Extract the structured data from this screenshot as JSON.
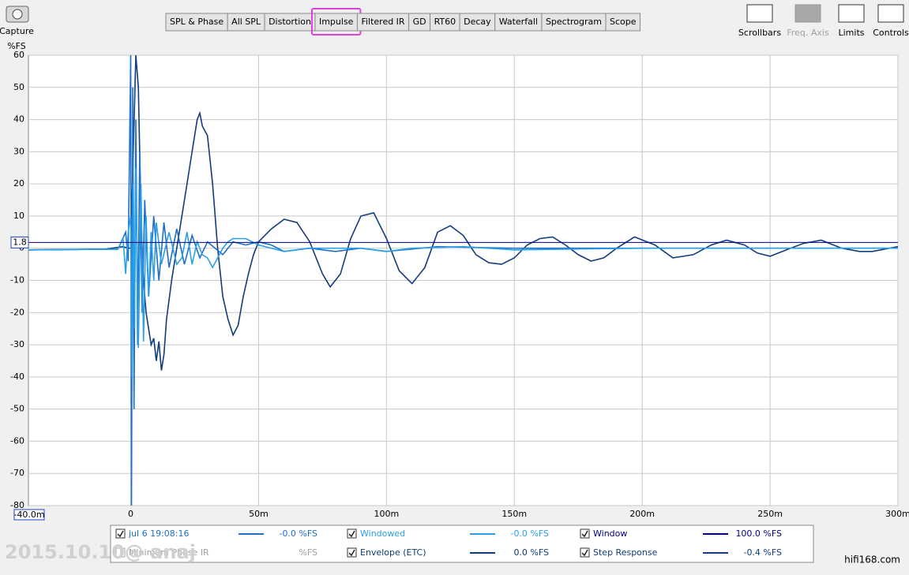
{
  "toolbar": {
    "capture": "Capture",
    "tabs": [
      "SPL & Phase",
      "All SPL",
      "Distortion",
      "Impulse",
      "Filtered IR",
      "GD",
      "RT60",
      "Decay",
      "Waterfall",
      "Spectrogram",
      "Scope"
    ],
    "selected_tab": 3,
    "tools": [
      {
        "label": "Scrollbars",
        "enabled": true
      },
      {
        "label": "Freq. Axis",
        "enabled": false
      },
      {
        "label": "Limits",
        "enabled": true
      },
      {
        "label": "Controls",
        "enabled": true
      }
    ]
  },
  "watermarks": [
    "2015.10.10@ anaj",
    "hifi168.com"
  ],
  "chart_data": {
    "type": "line",
    "ylabel": "%FS",
    "xunit": "s",
    "xlim": [
      -40,
      300
    ],
    "ylim": [
      -80,
      60
    ],
    "xstart": {
      "value": -40,
      "label": "-40.0m"
    },
    "cursor": 1.8,
    "xticks": [
      0,
      {
        "value": 50,
        "label": "50m"
      },
      {
        "value": 100,
        "label": "100m"
      },
      {
        "value": 150,
        "label": "150m"
      },
      {
        "value": 200,
        "label": "200m"
      },
      {
        "value": 250,
        "label": "250m"
      },
      {
        "value": 300,
        "label": "300m"
      }
    ],
    "yticks": [
      -80,
      -70,
      -60,
      -50,
      -40,
      -30,
      -20,
      -10,
      0,
      10,
      20,
      30,
      40,
      50,
      60
    ],
    "grid": true,
    "series": [
      {
        "name": "jul 6 19:08:16",
        "color": "#1f6fc8",
        "checked": true,
        "enabled": true,
        "readout": "-0.0 %FS",
        "x": [
          -40,
          -5,
          -2,
          -1,
          0,
          0.3,
          0.8,
          1.3,
          2,
          2.7,
          3.5,
          4.5,
          5.5,
          7,
          9,
          11,
          13,
          15,
          18,
          21,
          24,
          27,
          30,
          33,
          36,
          40,
          45,
          50,
          55,
          60,
          70,
          80,
          90,
          100,
          120,
          150,
          200,
          300
        ],
        "values": [
          -0.5,
          -0.3,
          5,
          -4,
          60,
          -80,
          50,
          -50,
          40,
          -30,
          30,
          -20,
          15,
          -15,
          10,
          -10,
          8,
          -6,
          6,
          -5,
          4,
          -3,
          2,
          0,
          -2,
          2,
          1,
          2,
          1,
          -1,
          0,
          -1,
          0,
          -1,
          0.5,
          0,
          0,
          0
        ]
      },
      {
        "name": "Windowed",
        "color": "#2aa0e8",
        "checked": true,
        "enabled": true,
        "readout": "-0.0 %FS",
        "x": [
          -40,
          -5,
          -3,
          -2,
          -1,
          0,
          0.5,
          1,
          1.5,
          2,
          3,
          4,
          5,
          6,
          7,
          8,
          9,
          10,
          12,
          15,
          18,
          20,
          22,
          24,
          26,
          28,
          30,
          32,
          34,
          36,
          38,
          40,
          45,
          50,
          55,
          60,
          70,
          80,
          90,
          100,
          110,
          130,
          150,
          200,
          300
        ],
        "values": [
          -0.5,
          -0.3,
          3,
          -8,
          5,
          10,
          -40,
          20,
          -25,
          25,
          -31,
          20,
          -29,
          10,
          -15,
          5,
          -10,
          8,
          -5,
          5,
          -5,
          -3,
          5,
          -5,
          2,
          -2,
          -3,
          -6,
          -3,
          0,
          2,
          3,
          3,
          1,
          0,
          -1,
          0,
          0,
          0,
          -1,
          0,
          0.5,
          -0.5,
          0,
          0
        ]
      },
      {
        "name": "Window",
        "color": "#00007f",
        "checked": true,
        "enabled": true,
        "readout": "100.0 %FS",
        "x": [],
        "values": []
      },
      {
        "name": "Minimum Phase IR",
        "color": "#a0a0a0",
        "checked": false,
        "enabled": false,
        "readout": "%FS",
        "x": [],
        "values": []
      },
      {
        "name": "Envelope (ETC)",
        "color": "#0d3d7a",
        "checked": true,
        "enabled": true,
        "readout": "0.0 %FS",
        "x": [],
        "values": []
      },
      {
        "name": "Step Response",
        "color": "#123c7c",
        "checked": true,
        "enabled": true,
        "readout": "-0.4 %FS",
        "x": [
          -40,
          -10,
          -3,
          -1,
          0,
          1,
          2,
          3,
          4,
          5,
          6,
          7,
          8,
          9,
          10,
          11,
          12,
          13,
          14,
          16,
          18,
          20,
          22,
          24,
          26,
          27,
          28,
          30,
          32,
          34,
          36,
          38,
          40,
          42,
          44,
          46,
          48,
          50,
          55,
          60,
          65,
          70,
          75,
          78,
          82,
          86,
          90,
          95,
          100,
          105,
          110,
          115,
          120,
          125,
          130,
          135,
          140,
          145,
          150,
          155,
          160,
          165,
          170,
          175,
          180,
          185,
          190,
          197,
          205,
          212,
          220,
          227,
          233,
          240,
          245,
          250,
          258,
          263,
          270,
          278,
          285,
          290,
          300
        ],
        "values": [
          -0.5,
          -0.3,
          0.5,
          0,
          0,
          30,
          60,
          50,
          10,
          -10,
          -20,
          -25,
          -30,
          -28,
          -35,
          -29,
          -38,
          -33,
          -22,
          -10,
          0,
          10,
          20,
          30,
          40,
          42,
          38,
          35,
          20,
          0,
          -15,
          -22,
          -27,
          -24,
          -15,
          -8,
          -2,
          2,
          6,
          9,
          8,
          2,
          -8,
          -12,
          -8,
          3,
          10,
          11,
          3,
          -7,
          -11,
          -6,
          5,
          7,
          4,
          -2,
          -4.5,
          -5,
          -3,
          1,
          3,
          3.5,
          1,
          -2,
          -4,
          -3,
          0,
          3.5,
          1,
          -3,
          -2,
          1,
          2.5,
          1,
          -1.5,
          -2.5,
          0,
          1.5,
          2.5,
          0,
          -1,
          -1,
          0.5
        ]
      }
    ]
  }
}
